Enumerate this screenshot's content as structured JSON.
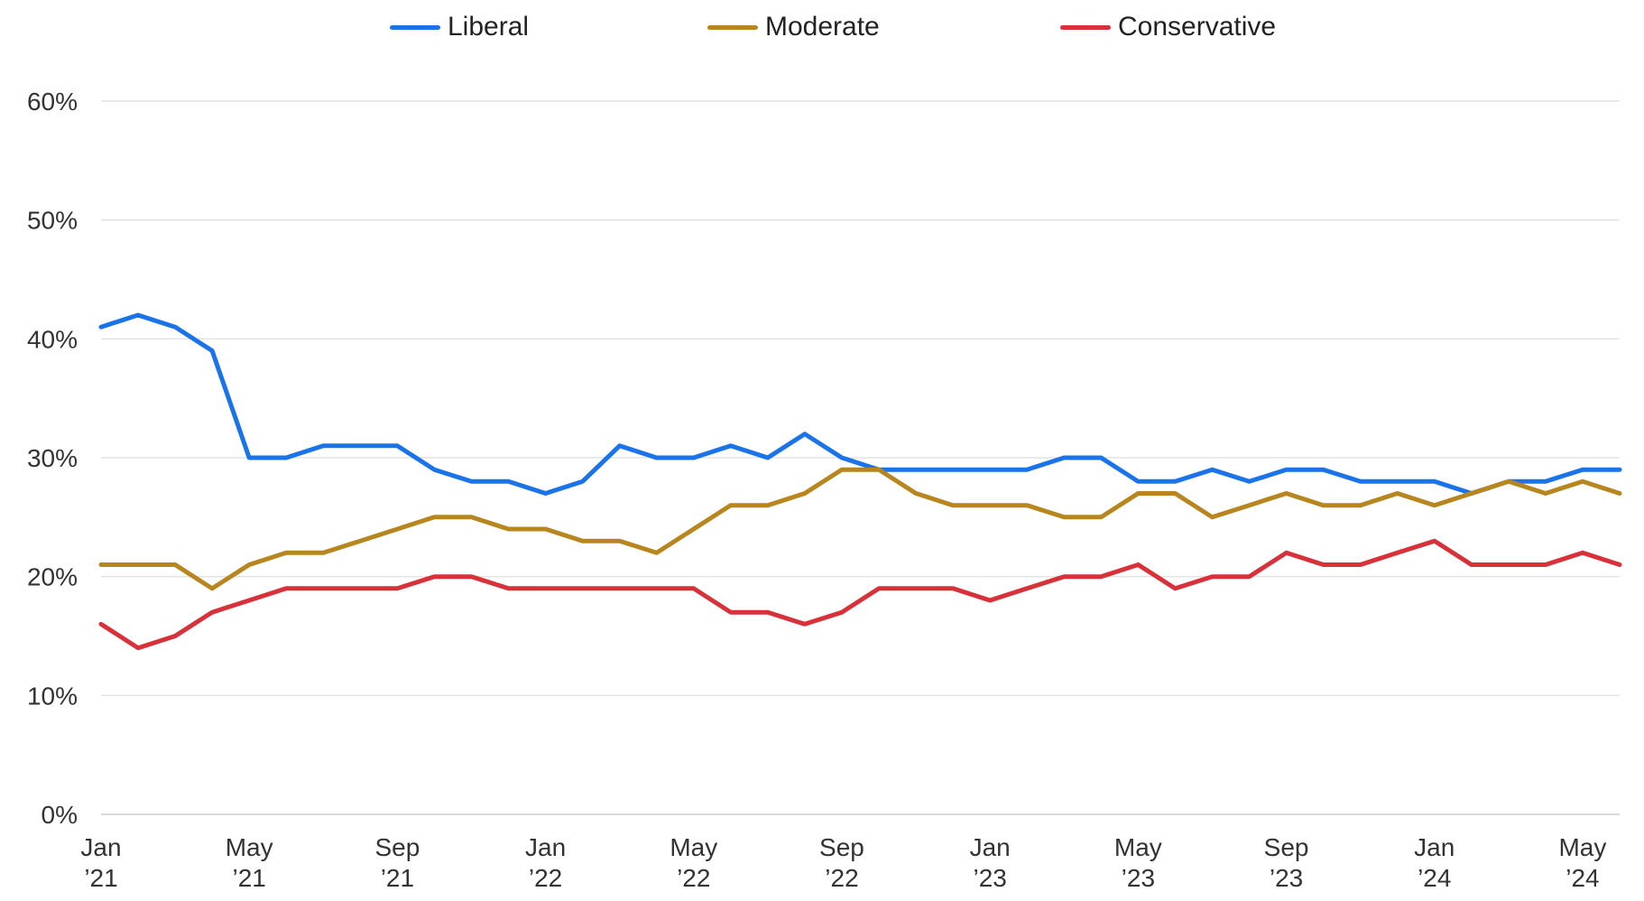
{
  "chart_data": {
    "type": "line",
    "title": "",
    "xlabel": "",
    "ylabel": "",
    "ylim": [
      0,
      60
    ],
    "y_ticks": [
      "0%",
      "10%",
      "20%",
      "30%",
      "40%",
      "50%",
      "60%"
    ],
    "x_ticks": [
      {
        "month": "Jan",
        "year": "’21"
      },
      {
        "month": "May",
        "year": "’21"
      },
      {
        "month": "Sep",
        "year": "’21"
      },
      {
        "month": "Jan",
        "year": "’22"
      },
      {
        "month": "May",
        "year": "’22"
      },
      {
        "month": "Sep",
        "year": "’22"
      },
      {
        "month": "Jan",
        "year": "’23"
      },
      {
        "month": "May",
        "year": "’23"
      },
      {
        "month": "Sep",
        "year": "’23"
      },
      {
        "month": "Jan",
        "year": "’24"
      },
      {
        "month": "May",
        "year": "’24"
      }
    ],
    "x": [
      "2021-01",
      "2021-02",
      "2021-03",
      "2021-04",
      "2021-05",
      "2021-06",
      "2021-07",
      "2021-08",
      "2021-09",
      "2021-10",
      "2021-11",
      "2021-12",
      "2022-01",
      "2022-02",
      "2022-03",
      "2022-04",
      "2022-05",
      "2022-06",
      "2022-07",
      "2022-08",
      "2022-09",
      "2022-10",
      "2022-11",
      "2022-12",
      "2023-01",
      "2023-02",
      "2023-03",
      "2023-04",
      "2023-05",
      "2023-06",
      "2023-07",
      "2023-08",
      "2023-09",
      "2023-10",
      "2023-11",
      "2023-12",
      "2024-01",
      "2024-02",
      "2024-03",
      "2024-04",
      "2024-05",
      "2024-06"
    ],
    "grid": true,
    "legend_position": "top",
    "series": [
      {
        "name": "Liberal",
        "color": "#1a73e8",
        "values": [
          41,
          42,
          41,
          39,
          30,
          30,
          31,
          31,
          31,
          29,
          28,
          28,
          27,
          28,
          31,
          30,
          30,
          31,
          30,
          32,
          30,
          29,
          29,
          29,
          29,
          29,
          30,
          30,
          28,
          28,
          29,
          28,
          29,
          29,
          28,
          28,
          28,
          27,
          28,
          28,
          29,
          29
        ]
      },
      {
        "name": "Moderate",
        "color": "#b8861f",
        "values": [
          21,
          21,
          21,
          19,
          21,
          22,
          22,
          23,
          24,
          25,
          25,
          24,
          24,
          23,
          23,
          22,
          24,
          26,
          26,
          27,
          29,
          29,
          27,
          26,
          26,
          26,
          25,
          25,
          27,
          27,
          25,
          26,
          27,
          26,
          26,
          27,
          26,
          27,
          28,
          27,
          28,
          27
        ]
      },
      {
        "name": "Conservative",
        "color": "#d9313a",
        "values": [
          16,
          14,
          15,
          17,
          18,
          19,
          19,
          19,
          19,
          20,
          20,
          19,
          19,
          19,
          19,
          19,
          19,
          17,
          17,
          16,
          17,
          19,
          19,
          19,
          18,
          19,
          20,
          20,
          21,
          19,
          20,
          20,
          22,
          21,
          21,
          22,
          23,
          21,
          21,
          21,
          22,
          21
        ]
      }
    ]
  }
}
